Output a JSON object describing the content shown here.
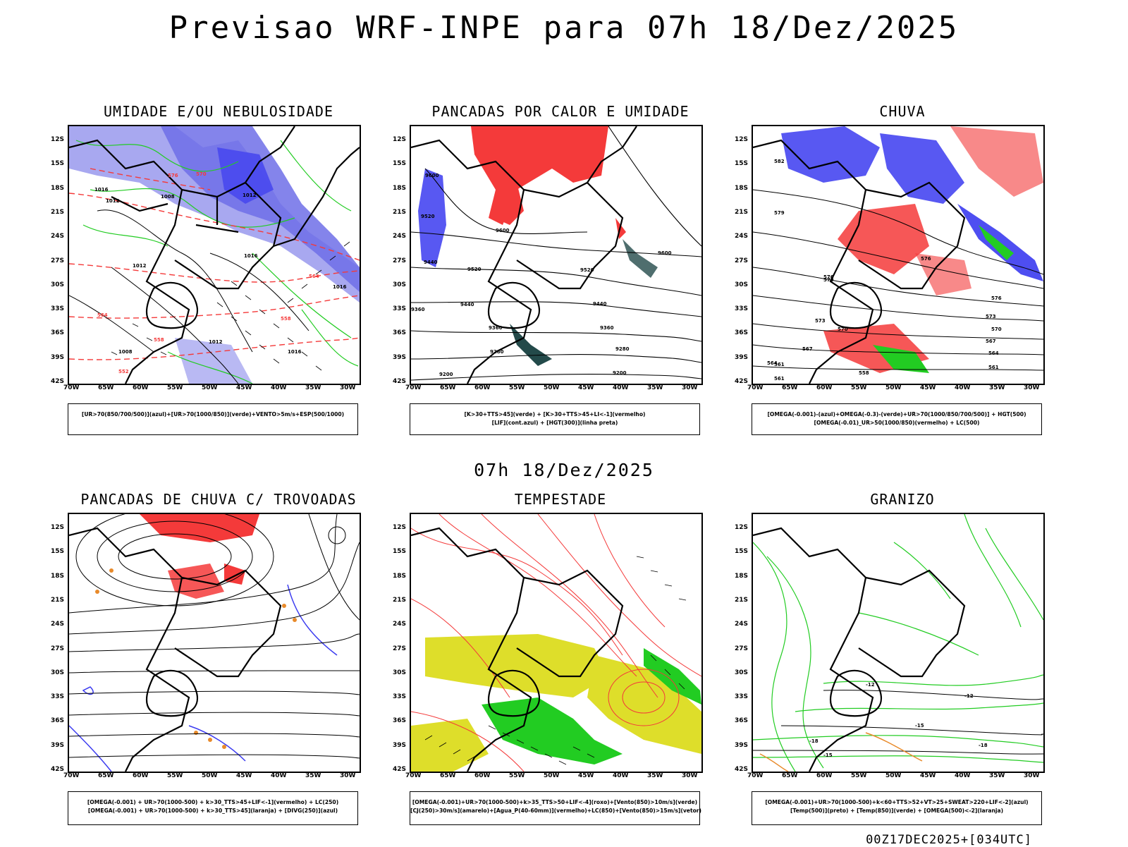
{
  "title": "Previsao WRF-INPE  para 07h 18/Dez/2025",
  "mid_title": "07h 18/Dez/2025",
  "footer": "00Z17DEC2025+[034UTC]",
  "lat_labels": [
    "12S",
    "15S",
    "18S",
    "21S",
    "24S",
    "27S",
    "30S",
    "33S",
    "36S",
    "39S",
    "42S"
  ],
  "lon_labels": [
    "70W",
    "65W",
    "60W",
    "55W",
    "50W",
    "45W",
    "40W",
    "35W",
    "30W"
  ],
  "panels": [
    {
      "title": "UMIDADE E/OU NEBULOSIDADE",
      "legend": [
        "[UR>70(850/700/500)](azul)+[UR>70(1000/850)](verde)+VENTO>5m/s+ESP(500/1000)"
      ]
    },
    {
      "title": "PANCADAS POR CALOR E UMIDADE",
      "legend": [
        "[K>30+TTS>45](verde) + [K>30+TTS>45+LI<-1](vermelho)",
        "[LIF](cont.azul) + [HGT(300)](linha preta)"
      ]
    },
    {
      "title": "CHUVA",
      "legend": [
        "[OMEGA(-0.001)-(azul)+OMEGA(-0.3)-(verde)+UR>70(1000/850/700/500)] + HGT(500)",
        "[OMEGA(-0.01)_UR>50(1000/850)(vermelho) + LC(500)"
      ]
    },
    {
      "title": "PANCADAS DE CHUVA C/ TROVOADAS",
      "legend": [
        "[OMEGA(-0.001) + UR>70(1000-500) + k>30_TTS>45+LIF<-1](vermelho) + LC(250)",
        "[OMEGA(-0.001) + UR>70(1000-500) + k>30_TTS>45](laranja) + [DIVG(250)](azul)"
      ]
    },
    {
      "title": "TEMPESTADE",
      "legend": [
        "[OMEGA(-0.001)+UR>70(1000-500)+k>35_TTS>50+LIF<-4](roxo)+[Vento(850)>10m/s](verde)",
        "[CJ(250)>30m/s](amarelo)+[Agua_P(40-60mm)](vermelho)+LC(850)+[Vento(850)>15m/s](vetor)"
      ]
    },
    {
      "title": "GRANIZO",
      "legend": [
        "[OMEGA(-0.001)+UR>70(1000-500)+k<60+TTS>52+VT>25+SWEAT>220+LIF<-2](azul)",
        "[Temp(500)](preto) + [Temp(850)](verde) + [OMEGA(500)<-2](laranja)"
      ]
    }
  ],
  "contour_labels": {
    "p1": [
      "1016",
      "1012",
      "1008",
      "1012",
      "1016",
      "1012",
      "1008",
      "1012",
      "1016",
      "1016",
      "576",
      "570",
      "564",
      "558",
      "552",
      "564",
      "558"
    ],
    "p2": [
      "9600",
      "9520",
      "9440",
      "9360",
      "9280",
      "9200",
      "9600",
      "9520",
      "9440",
      "9360",
      "9280",
      "9200",
      "9520",
      "9440",
      "9360",
      "9600"
    ],
    "p3": [
      "582",
      "579",
      "576",
      "573",
      "570",
      "567",
      "564",
      "561",
      "576",
      "573",
      "570",
      "567",
      "564",
      "561",
      "558",
      "561",
      "576",
      "579"
    ],
    "p5": [],
    "p6": [
      "-18",
      "-15",
      "-12",
      "-18",
      "-15",
      "-12"
    ]
  },
  "colors": {
    "contour": "#000000",
    "red": "#f43a3a",
    "green": "#22cc22",
    "blue": "#3b3bf0",
    "lightblue": "#a8a8f0",
    "medblue": "#6e6ee8",
    "darkteal": "#234a4a",
    "yellow": "#dede2a",
    "orange": "#e88a2a"
  }
}
